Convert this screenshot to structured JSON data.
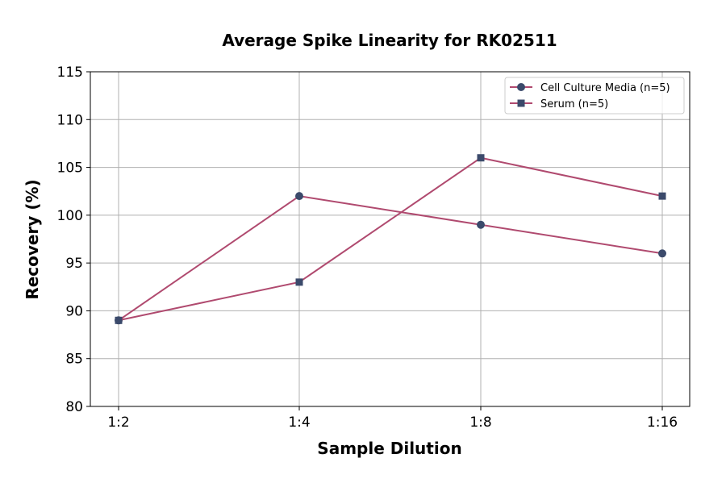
{
  "chart_data": {
    "type": "line",
    "title": "Average Spike Linearity for RK02511",
    "xlabel": "Sample Dilution",
    "ylabel": "Recovery (%)",
    "categories": [
      "1:2",
      "1:4",
      "1:8",
      "1:16"
    ],
    "ylim": [
      80,
      115
    ],
    "yticks": [
      80,
      85,
      90,
      95,
      100,
      105,
      110,
      115
    ],
    "grid": true,
    "legend_placement": "top-right",
    "series": [
      {
        "name": "Cell Culture Media (n=5)",
        "values": [
          89,
          102,
          99,
          96
        ],
        "marker": "circle",
        "line_color": "#b04a6f",
        "marker_color": "#3b4a6b"
      },
      {
        "name": "Serum (n=5)",
        "values": [
          89,
          93,
          106,
          102
        ],
        "marker": "square",
        "line_color": "#b04a6f",
        "marker_color": "#3b4a6b"
      }
    ]
  }
}
